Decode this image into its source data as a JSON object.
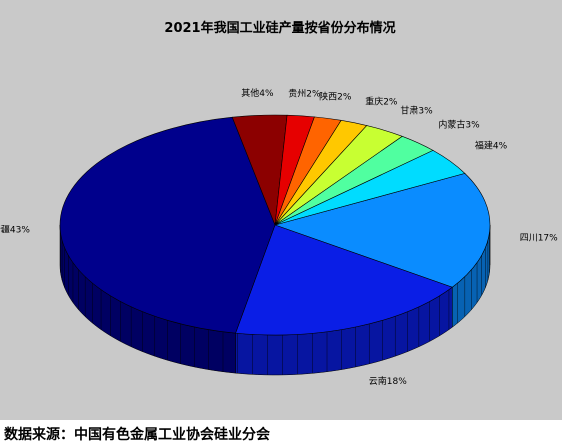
{
  "chart_data": {
    "type": "pie",
    "title": "2021年我国工业硅产量按省份分布情况",
    "slices": [
      {
        "label": "四川",
        "value": 17,
        "color": "#0a8cff"
      },
      {
        "label": "云南",
        "value": 18,
        "color": "#0a1ee6"
      },
      {
        "label": "新疆",
        "value": 43,
        "color": "#00008c"
      },
      {
        "label": "其他",
        "value": 4,
        "color": "#8c0000"
      },
      {
        "label": "贵州",
        "value": 2,
        "color": "#e60000"
      },
      {
        "label": "陕西",
        "value": 2,
        "color": "#ff6400"
      },
      {
        "label": "重庆",
        "value": 2,
        "color": "#ffc800"
      },
      {
        "label": "甘肃",
        "value": 3,
        "color": "#c8ff32"
      },
      {
        "label": "内蒙古",
        "value": 3,
        "color": "#50ffa0"
      },
      {
        "label": "福建",
        "value": 4,
        "color": "#00dcff"
      }
    ],
    "value_suffix": "%"
  },
  "source": "数据来源：中国有色金属工业协会硅业分会"
}
